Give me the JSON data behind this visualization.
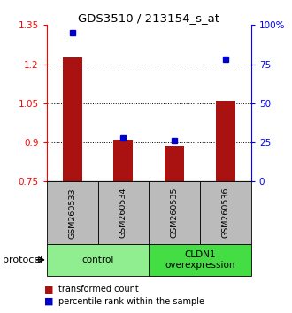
{
  "title": "GDS3510 / 213154_s_at",
  "samples": [
    "GSM260533",
    "GSM260534",
    "GSM260535",
    "GSM260536"
  ],
  "red_values": [
    1.225,
    0.91,
    0.885,
    1.06
  ],
  "blue_values_pct": [
    95,
    28,
    26,
    78
  ],
  "ylim_left": [
    0.75,
    1.35
  ],
  "ylim_right": [
    0,
    100
  ],
  "yticks_left": [
    0.75,
    0.9,
    1.05,
    1.2,
    1.35
  ],
  "ytick_labels_left": [
    "0.75",
    "0.9",
    "1.05",
    "1.2",
    "1.35"
  ],
  "yticks_right": [
    0,
    25,
    50,
    75,
    100
  ],
  "ytick_labels_right": [
    "0",
    "25",
    "50",
    "75",
    "100%"
  ],
  "hline_values": [
    0.9,
    1.05,
    1.2
  ],
  "groups": [
    {
      "label": "control",
      "color": "#90ee90"
    },
    {
      "label": "CLDN1\noverexpression",
      "color": "#44dd44"
    }
  ],
  "protocol_label": "protocol",
  "legend_red_label": "transformed count",
  "legend_blue_label": "percentile rank within the sample",
  "bar_color": "#aa1111",
  "dot_color": "#0000cc",
  "bar_baseline": 0.75,
  "background_color": "#ffffff",
  "tick_area_bg": "#bbbbbb"
}
